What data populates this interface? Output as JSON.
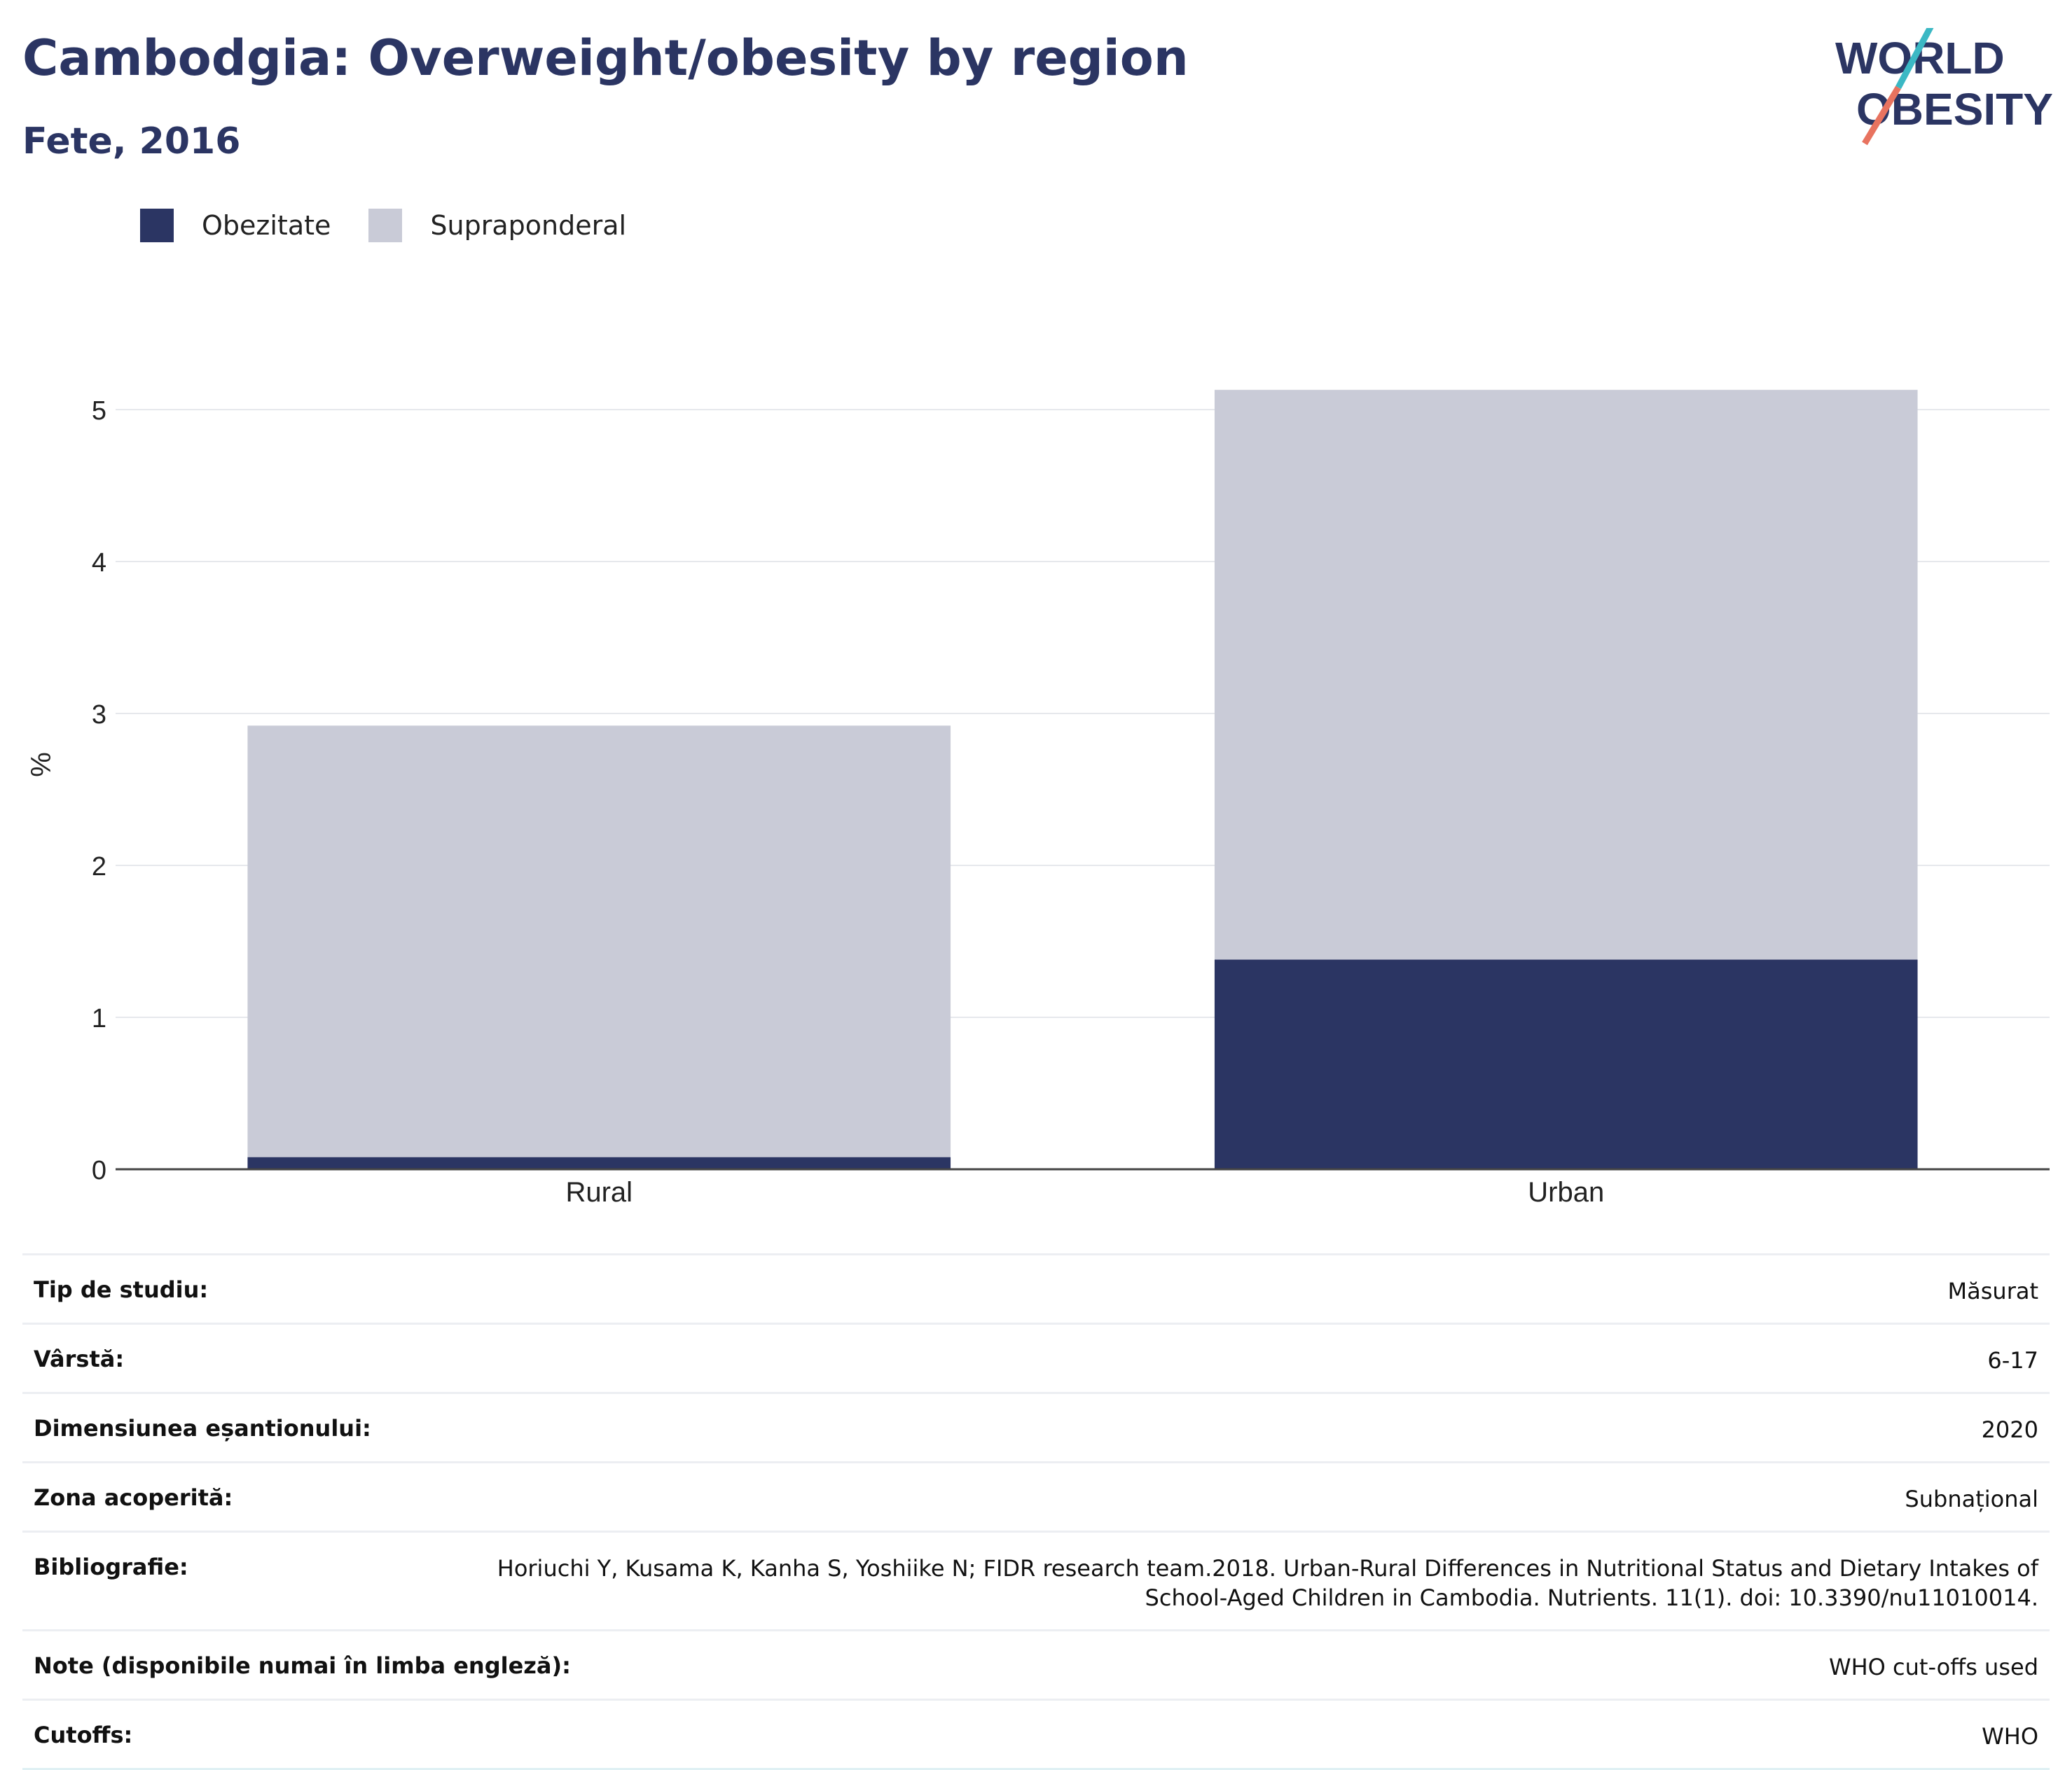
{
  "header": {
    "title": "Cambodgia: Overweight/obesity by region",
    "subtitle": "Fete, 2016"
  },
  "logo": {
    "line1": "WORLD",
    "line2": "OBESITY"
  },
  "colors": {
    "obesity": "#2b3563",
    "overweight": "#c9cbd7",
    "title": "#2b3563",
    "logo_slash_top": "#3bb8c4",
    "logo_slash_bottom": "#e8735f"
  },
  "chart_data": {
    "type": "bar",
    "stacked": true,
    "categories": [
      "Rural",
      "Urban"
    ],
    "series": [
      {
        "name": "Obezitate",
        "values": [
          0.08,
          1.38
        ]
      },
      {
        "name": "Supraponderal",
        "values": [
          2.84,
          3.75
        ]
      }
    ],
    "ylabel": "%",
    "xlabel": "",
    "ylim": [
      0,
      5.5
    ],
    "yticks": [
      0,
      1,
      2,
      3,
      4,
      5
    ],
    "grid": true,
    "legend": "top-left"
  },
  "meta": [
    {
      "key": "Tip de studiu:",
      "value": "Măsurat"
    },
    {
      "key": "Vârstă:",
      "value": "6-17"
    },
    {
      "key": "Dimensiunea eșantionului:",
      "value": "2020"
    },
    {
      "key": "Zona acoperită:",
      "value": "Subnațional"
    },
    {
      "key": "Bibliografie:",
      "value": "Horiuchi Y, Kusama K, Kanha S, Yoshiike N; FIDR research team.2018. Urban-Rural Differences in Nutritional Status and Dietary Intakes of School-Aged Children in Cambodia. Nutrients. 11(1). doi: 10.3390/nu11010014."
    },
    {
      "key": "Note (disponibile numai în limba engleză):",
      "value": "WHO cut-offs used"
    },
    {
      "key": "Cutoffs:",
      "value": "WHO"
    }
  ]
}
